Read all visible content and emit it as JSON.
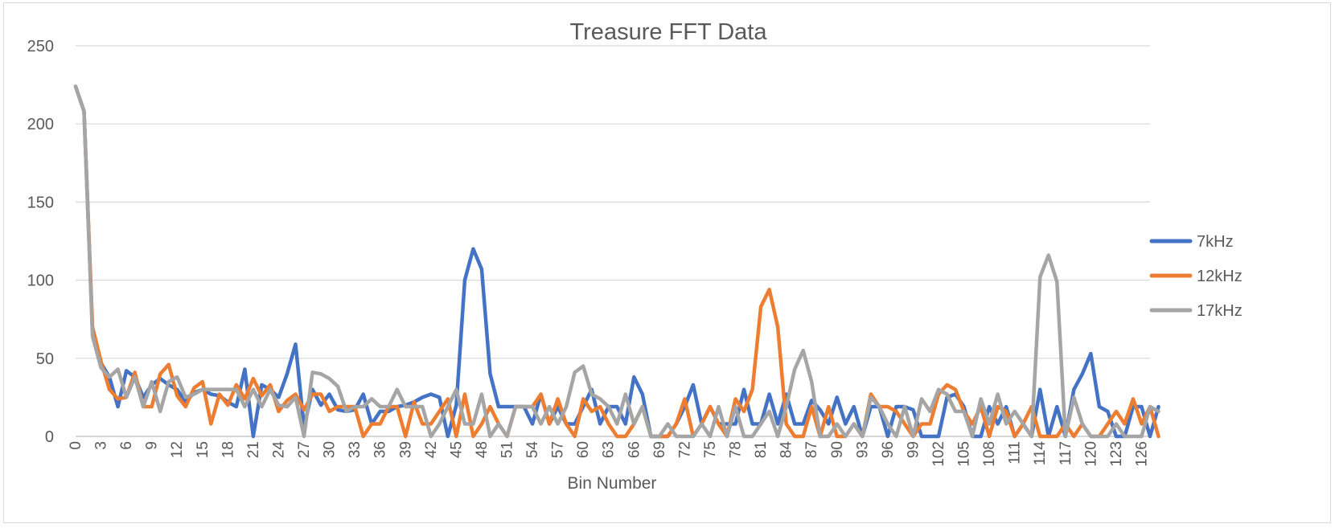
{
  "chart_data": {
    "type": "line",
    "title": "Treasure FFT Data",
    "xlabel": "Bin Number",
    "ylabel": "",
    "ylim": [
      0,
      250
    ],
    "yticks": [
      0,
      50,
      100,
      150,
      200,
      250
    ],
    "xlim": [
      0,
      127
    ],
    "xtick_step": 3,
    "grid": "horizontal",
    "legend_position": "right",
    "series": [
      {
        "name": "7kHz",
        "color": "#4472c4",
        "values": [
          224,
          208,
          67,
          47,
          38,
          19,
          42,
          38,
          25,
          33,
          37,
          33,
          30,
          22,
          28,
          30,
          27,
          26,
          22,
          19,
          43,
          0,
          33,
          30,
          25,
          40,
          59,
          6,
          30,
          20,
          27,
          17,
          16,
          17,
          27,
          8,
          16,
          16,
          19,
          20,
          22,
          25,
          27,
          25,
          0,
          20,
          100,
          120,
          107,
          40,
          19,
          19,
          19,
          19,
          8,
          27,
          8,
          19,
          8,
          8,
          19,
          30,
          8,
          19,
          19,
          8,
          38,
          27,
          0,
          0,
          0,
          8,
          19,
          33,
          8,
          19,
          8,
          8,
          8,
          30,
          8,
          8,
          27,
          8,
          27,
          8,
          8,
          23,
          17,
          8,
          25,
          8,
          19,
          0,
          19,
          19,
          0,
          19,
          19,
          17,
          0,
          0,
          0,
          25,
          27,
          19,
          0,
          0,
          19,
          8,
          19,
          0,
          8,
          0,
          30,
          0,
          19,
          0,
          30,
          40,
          53,
          19,
          16,
          0,
          0,
          19,
          19,
          0,
          19
        ]
      },
      {
        "name": "12kHz",
        "color": "#ed7d31",
        "values": [
          224,
          208,
          70,
          48,
          30,
          24,
          25,
          41,
          19,
          19,
          40,
          46,
          26,
          19,
          31,
          35,
          8,
          27,
          20,
          33,
          24,
          37,
          26,
          33,
          16,
          23,
          27,
          17,
          27,
          27,
          16,
          19,
          19,
          19,
          0,
          8,
          8,
          19,
          19,
          0,
          22,
          8,
          8,
          16,
          24,
          0,
          27,
          0,
          8,
          19,
          8,
          0,
          19,
          19,
          19,
          27,
          8,
          24,
          8,
          0,
          24,
          16,
          19,
          8,
          0,
          0,
          8,
          19,
          0,
          0,
          0,
          8,
          24,
          0,
          8,
          19,
          8,
          0,
          24,
          16,
          30,
          83,
          94,
          70,
          8,
          0,
          0,
          19,
          0,
          19,
          0,
          0,
          8,
          0,
          27,
          19,
          19,
          16,
          8,
          0,
          8,
          8,
          27,
          33,
          30,
          16,
          8,
          19,
          0,
          19,
          16,
          0,
          8,
          19,
          0,
          0,
          0,
          8,
          0,
          8,
          0,
          0,
          8,
          16,
          8,
          24,
          8,
          19,
          0
        ]
      },
      {
        "name": "17kHz",
        "color": "#a5a5a5",
        "values": [
          224,
          208,
          64,
          44,
          38,
          43,
          25,
          38,
          19,
          35,
          16,
          35,
          38,
          25,
          27,
          30,
          30,
          30,
          30,
          30,
          19,
          30,
          19,
          30,
          20,
          19,
          25,
          0,
          41,
          40,
          37,
          32,
          16,
          19,
          19,
          24,
          19,
          19,
          30,
          19,
          19,
          19,
          0,
          8,
          19,
          30,
          8,
          8,
          27,
          0,
          8,
          0,
          19,
          19,
          19,
          8,
          19,
          8,
          19,
          41,
          45,
          27,
          24,
          19,
          8,
          27,
          8,
          19,
          0,
          0,
          8,
          0,
          0,
          0,
          8,
          0,
          19,
          0,
          19,
          0,
          0,
          8,
          16,
          0,
          19,
          43,
          55,
          35,
          0,
          0,
          8,
          0,
          8,
          0,
          25,
          19,
          8,
          0,
          19,
          0,
          24,
          16,
          30,
          27,
          16,
          16,
          0,
          24,
          8,
          27,
          8,
          16,
          8,
          0,
          102,
          116,
          99,
          0,
          25,
          8,
          0,
          0,
          0,
          8,
          0,
          0,
          0,
          19,
          16
        ]
      }
    ]
  }
}
